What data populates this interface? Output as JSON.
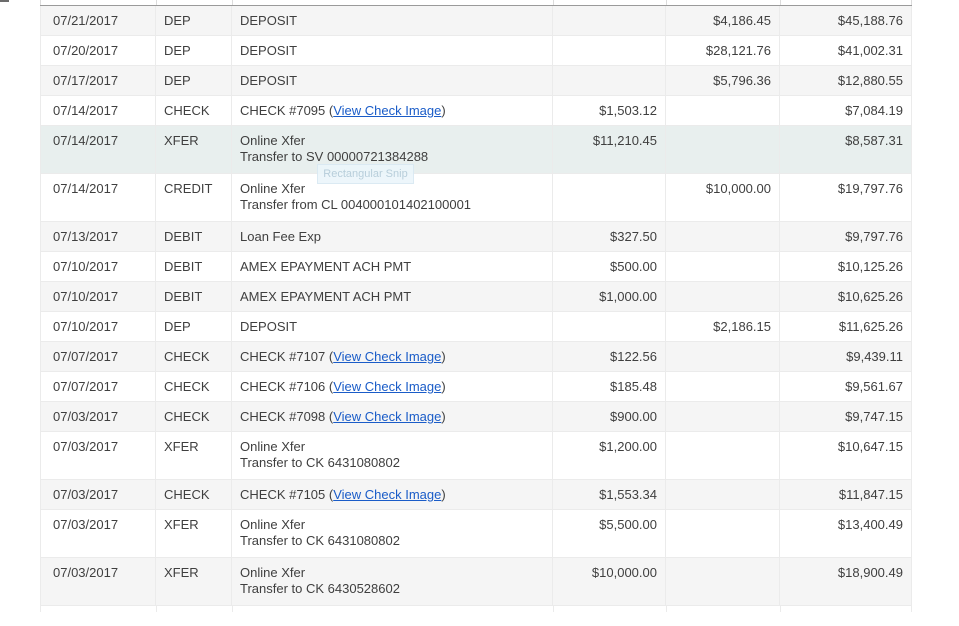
{
  "tooltip": {
    "label": "Rectangular Snip"
  },
  "colors": {
    "link": "#1a5cc8",
    "stripe": "#f5f5f5",
    "row-highlight": "#e8efee",
    "tooltip-bg": "#ecf6fb",
    "tooltip-text": "#b3cbd9",
    "tooltip-border": "#d9e9f3",
    "header-line": "#9a9a9a",
    "grid-line": "#ebebeb",
    "text": "#3f3f3f"
  },
  "table": {
    "link_label": "View Check Image",
    "rows": [
      {
        "date": "07/21/2017",
        "type": "DEP",
        "desc_line1": "DEPOSIT",
        "desc_link": "",
        "desc_after_link": "",
        "desc_line2": "",
        "debit": "",
        "credit": "$4,186.45",
        "balance": "$45,188.76",
        "highlighted": false
      },
      {
        "date": "07/20/2017",
        "type": "DEP",
        "desc_line1": "DEPOSIT",
        "desc_link": "",
        "desc_after_link": "",
        "desc_line2": "",
        "debit": "",
        "credit": "$28,121.76",
        "balance": "$41,002.31",
        "highlighted": false
      },
      {
        "date": "07/17/2017",
        "type": "DEP",
        "desc_line1": "DEPOSIT",
        "desc_link": "",
        "desc_after_link": "",
        "desc_line2": "",
        "debit": "",
        "credit": "$5,796.36",
        "balance": "$12,880.55",
        "highlighted": false
      },
      {
        "date": "07/14/2017",
        "type": "CHECK",
        "desc_line1": "CHECK #7095 (",
        "desc_link": "View Check Image",
        "desc_after_link": ")",
        "desc_line2": "",
        "debit": "$1,503.12",
        "credit": "",
        "balance": "$7,084.19",
        "highlighted": false
      },
      {
        "date": "07/14/2017",
        "type": "XFER",
        "desc_line1": "Online Xfer",
        "desc_link": "",
        "desc_after_link": "",
        "desc_line2": "Transfer to SV 00000721384288",
        "debit": "$11,210.45",
        "credit": "",
        "balance": "$8,587.31",
        "highlighted": true
      },
      {
        "date": "07/14/2017",
        "type": "CREDIT",
        "desc_line1": "Online Xfer",
        "desc_link": "",
        "desc_after_link": "",
        "desc_line2": "Transfer from CL 004000101402100001",
        "debit": "",
        "credit": "$10,000.00",
        "balance": "$19,797.76",
        "highlighted": false
      },
      {
        "date": "07/13/2017",
        "type": "DEBIT",
        "desc_line1": "Loan Fee Exp",
        "desc_link": "",
        "desc_after_link": "",
        "desc_line2": "",
        "debit": "$327.50",
        "credit": "",
        "balance": "$9,797.76",
        "highlighted": false
      },
      {
        "date": "07/10/2017",
        "type": "DEBIT",
        "desc_line1": "AMEX EPAYMENT ACH PMT",
        "desc_link": "",
        "desc_after_link": "",
        "desc_line2": "",
        "debit": "$500.00",
        "credit": "",
        "balance": "$10,125.26",
        "highlighted": false
      },
      {
        "date": "07/10/2017",
        "type": "DEBIT",
        "desc_line1": "AMEX EPAYMENT ACH PMT",
        "desc_link": "",
        "desc_after_link": "",
        "desc_line2": "",
        "debit": "$1,000.00",
        "credit": "",
        "balance": "$10,625.26",
        "highlighted": false
      },
      {
        "date": "07/10/2017",
        "type": "DEP",
        "desc_line1": "DEPOSIT",
        "desc_link": "",
        "desc_after_link": "",
        "desc_line2": "",
        "debit": "",
        "credit": "$2,186.15",
        "balance": "$11,625.26",
        "highlighted": false
      },
      {
        "date": "07/07/2017",
        "type": "CHECK",
        "desc_line1": "CHECK #7107 (",
        "desc_link": "View Check Image",
        "desc_after_link": ")",
        "desc_line2": "",
        "debit": "$122.56",
        "credit": "",
        "balance": "$9,439.11",
        "highlighted": false
      },
      {
        "date": "07/07/2017",
        "type": "CHECK",
        "desc_line1": "CHECK #7106 (",
        "desc_link": "View Check Image",
        "desc_after_link": ")",
        "desc_line2": "",
        "debit": "$185.48",
        "credit": "",
        "balance": "$9,561.67",
        "highlighted": false
      },
      {
        "date": "07/03/2017",
        "type": "CHECK",
        "desc_line1": "CHECK #7098 (",
        "desc_link": "View Check Image",
        "desc_after_link": ")",
        "desc_line2": "",
        "debit": "$900.00",
        "credit": "",
        "balance": "$9,747.15",
        "highlighted": false
      },
      {
        "date": "07/03/2017",
        "type": "XFER",
        "desc_line1": "Online Xfer",
        "desc_link": "",
        "desc_after_link": "",
        "desc_line2": "Transfer to CK 6431080802",
        "debit": "$1,200.00",
        "credit": "",
        "balance": "$10,647.15",
        "highlighted": false
      },
      {
        "date": "07/03/2017",
        "type": "CHECK",
        "desc_line1": "CHECK #7105 (",
        "desc_link": "View Check Image",
        "desc_after_link": ")",
        "desc_line2": "",
        "debit": "$1,553.34",
        "credit": "",
        "balance": "$11,847.15",
        "highlighted": false
      },
      {
        "date": "07/03/2017",
        "type": "XFER",
        "desc_line1": "Online Xfer",
        "desc_link": "",
        "desc_after_link": "",
        "desc_line2": "Transfer to CK 6431080802",
        "debit": "$5,500.00",
        "credit": "",
        "balance": "$13,400.49",
        "highlighted": false
      },
      {
        "date": "07/03/2017",
        "type": "XFER",
        "desc_line1": "Online Xfer",
        "desc_link": "",
        "desc_after_link": "",
        "desc_line2": "Transfer to CK 6430528602",
        "debit": "$10,000.00",
        "credit": "",
        "balance": "$18,900.49",
        "highlighted": false
      }
    ]
  }
}
